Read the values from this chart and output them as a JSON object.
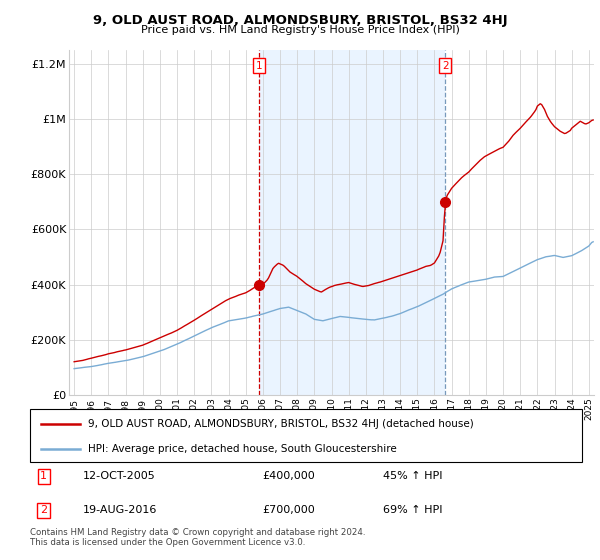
{
  "title": "9, OLD AUST ROAD, ALMONDSBURY, BRISTOL, BS32 4HJ",
  "subtitle": "Price paid vs. HM Land Registry's House Price Index (HPI)",
  "legend_line1": "9, OLD AUST ROAD, ALMONDSBURY, BRISTOL, BS32 4HJ (detached house)",
  "legend_line2": "HPI: Average price, detached house, South Gloucestershire",
  "marker1_date_str": "12-OCT-2005",
  "marker1_price": 400000,
  "marker1_pct": "45% ↑ HPI",
  "marker2_date_str": "19-AUG-2016",
  "marker2_price": 700000,
  "marker2_pct": "69% ↑ HPI",
  "footnote": "Contains HM Land Registry data © Crown copyright and database right 2024.\nThis data is licensed under the Open Government Licence v3.0.",
  "red_color": "#cc0000",
  "blue_color": "#7aacd4",
  "marker1_x": 2005.79,
  "marker2_x": 2016.63,
  "ylim": [
    0,
    1250000
  ],
  "xlim_start": 1994.7,
  "xlim_end": 2025.3,
  "yticks": [
    0,
    200000,
    400000,
    600000,
    800000,
    1000000,
    1200000
  ],
  "ytick_labels": [
    "£0",
    "£200K",
    "£400K",
    "£600K",
    "£800K",
    "£1M",
    "£1.2M"
  ],
  "xticks": [
    1995,
    1996,
    1997,
    1998,
    1999,
    2000,
    2001,
    2002,
    2003,
    2004,
    2005,
    2006,
    2007,
    2008,
    2009,
    2010,
    2011,
    2012,
    2013,
    2014,
    2015,
    2016,
    2017,
    2018,
    2019,
    2020,
    2021,
    2022,
    2023,
    2024,
    2025
  ]
}
